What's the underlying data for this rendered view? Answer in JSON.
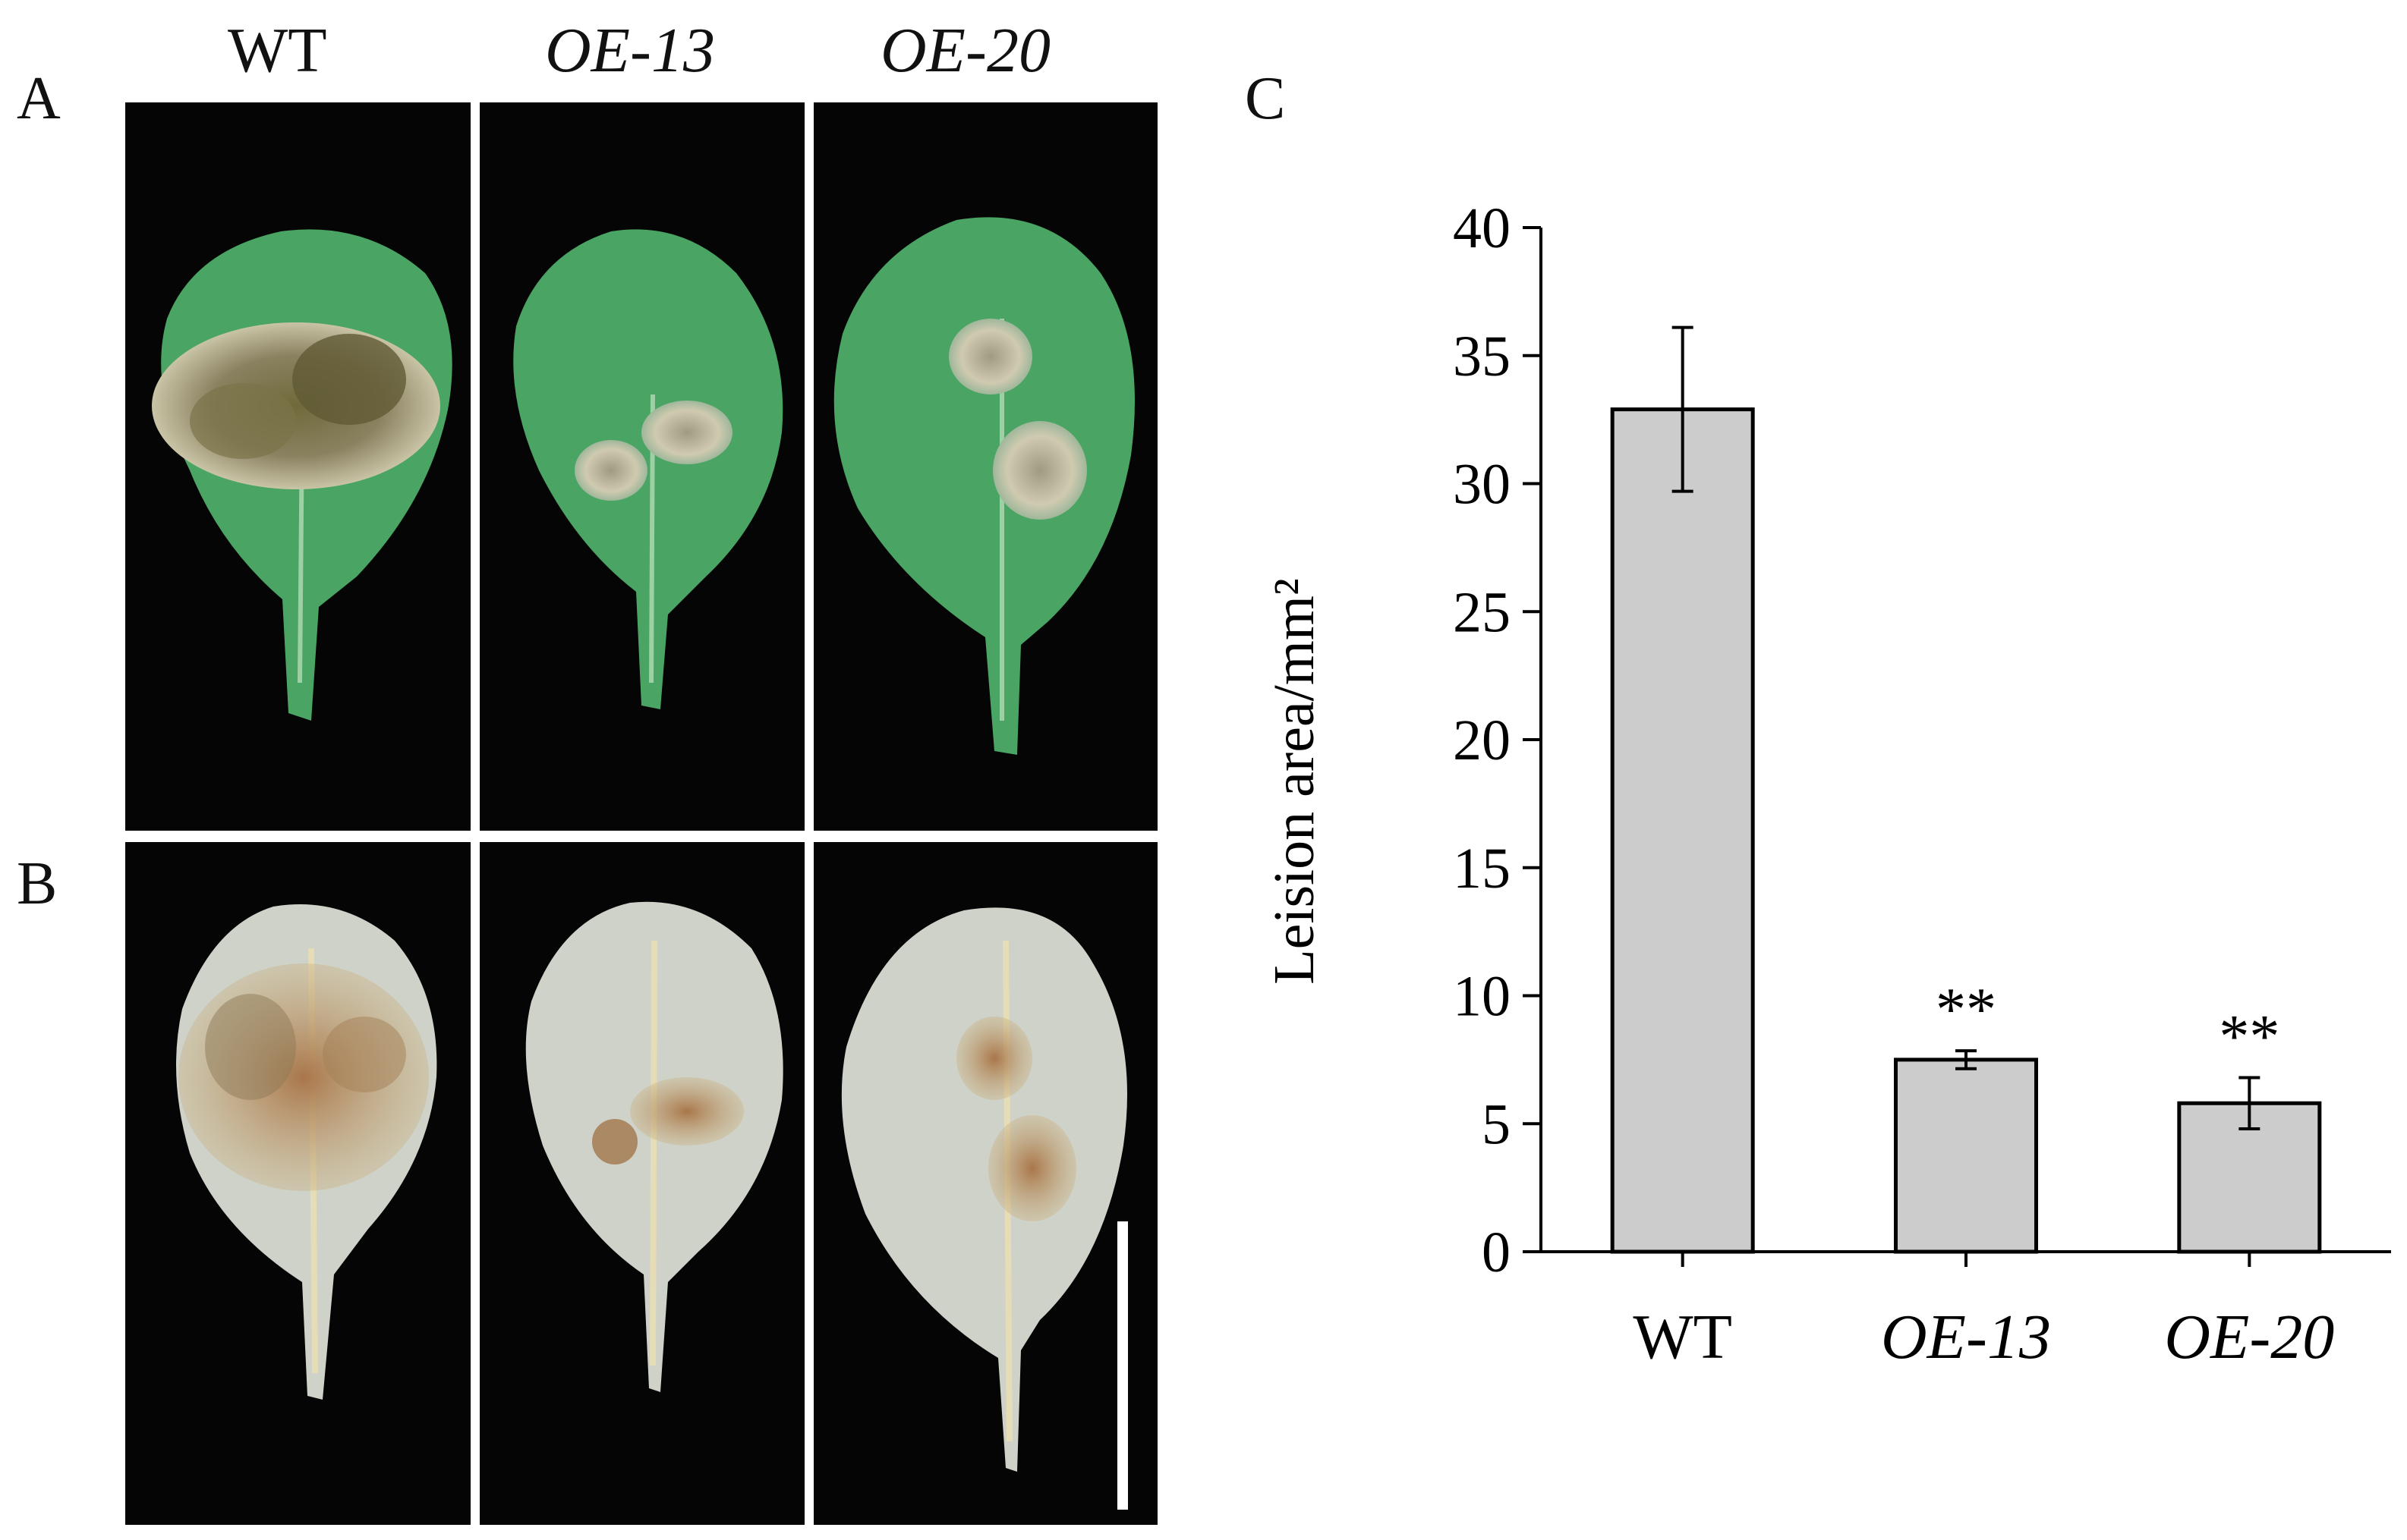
{
  "panel_labels": {
    "a": "A",
    "b": "B",
    "c": "C"
  },
  "genotypes": [
    "WT",
    "OE-13",
    "OE-20"
  ],
  "leaves": {
    "panel_a": [
      {
        "lesions": 3
      },
      {
        "lesions": 2
      },
      {
        "lesions": 2
      }
    ],
    "panel_b": [
      {
        "lesions": 3
      },
      {
        "lesions": 2
      },
      {
        "lesions": 2
      }
    ]
  },
  "colors": {
    "photo_bg": "#050505",
    "leaf_green": "#4aa463",
    "leaf_green_dark": "#2f7d47",
    "lesion_brown": "#8a8160",
    "lesion_pale": "#d7d2b8",
    "stained_leaf": "#cfd2c8",
    "stain_brown": "#b98a4f",
    "bar_fill": "#cccccc",
    "bar_stroke": "#000000"
  },
  "chart_data": {
    "type": "bar",
    "categories": [
      "WT",
      "OE-13",
      "OE-20"
    ],
    "category_italic": [
      false,
      true,
      true
    ],
    "values": [
      32.9,
      7.5,
      5.8
    ],
    "errors": [
      3.2,
      0.35,
      1.0
    ],
    "significance": [
      "",
      "**",
      "**"
    ],
    "ylabel": "Leision area/mm²",
    "ylim": [
      0,
      40
    ],
    "yticks": [
      0,
      5,
      10,
      15,
      20,
      25,
      30,
      35,
      40
    ],
    "grid": false
  }
}
